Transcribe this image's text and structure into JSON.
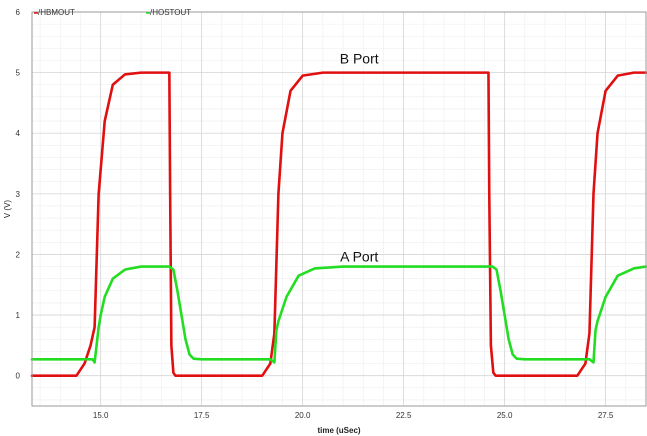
{
  "chart_data": {
    "type": "line",
    "xlabel": "time (uSec)",
    "ylabel": "V (V)",
    "xlim": [
      13.3,
      28.5
    ],
    "ylim": [
      -0.5,
      6.0
    ],
    "xticks": [
      15.0,
      17.5,
      20.0,
      22.5,
      25.0,
      27.5
    ],
    "xtick_labels": [
      "15.0",
      "17.5",
      "20.0",
      "22.5",
      "25.0",
      "27.5"
    ],
    "yticks": [
      0,
      1,
      2,
      3,
      4,
      5,
      6
    ],
    "ytick_labels": [
      "0",
      "1",
      "2",
      "3",
      "4",
      "5",
      "6"
    ],
    "grid": true,
    "legend_placement": "top-left",
    "series": [
      {
        "name": "/HBMOUT",
        "color": "#e01010",
        "x": [
          13.3,
          14.4,
          14.6,
          14.75,
          14.85,
          14.95,
          15.1,
          15.3,
          15.6,
          16.0,
          16.7,
          16.72,
          16.75,
          16.8,
          16.85,
          19.0,
          19.2,
          19.3,
          19.4,
          19.5,
          19.7,
          20.0,
          20.5,
          24.6,
          24.62,
          24.66,
          24.72,
          24.78,
          24.8,
          26.8,
          27.0,
          27.1,
          27.2,
          27.3,
          27.5,
          27.8,
          28.2,
          28.5
        ],
        "y": [
          0.0,
          0.0,
          0.2,
          0.5,
          0.8,
          3.0,
          4.2,
          4.8,
          4.97,
          5.0,
          5.0,
          3.0,
          0.5,
          0.05,
          0.0,
          0.0,
          0.2,
          0.7,
          3.0,
          4.0,
          4.7,
          4.95,
          5.0,
          5.0,
          3.0,
          0.5,
          0.05,
          0.0,
          0.0,
          0.0,
          0.2,
          0.7,
          3.0,
          4.0,
          4.7,
          4.95,
          5.0,
          5.0
        ]
      },
      {
        "name": "/HOSTOUT",
        "color": "#22dd22",
        "x": [
          13.3,
          14.8,
          14.85,
          14.95,
          15.0,
          15.1,
          15.3,
          15.6,
          16.0,
          16.7,
          16.8,
          16.9,
          17.0,
          17.1,
          17.2,
          17.3,
          17.5,
          19.2,
          19.3,
          19.35,
          19.4,
          19.6,
          19.9,
          20.3,
          21.0,
          24.7,
          24.8,
          24.9,
          25.0,
          25.1,
          25.2,
          25.3,
          25.5,
          27.1,
          27.2,
          27.25,
          27.3,
          27.5,
          27.8,
          28.2,
          28.5
        ],
        "y": [
          0.27,
          0.27,
          0.22,
          0.8,
          1.0,
          1.3,
          1.6,
          1.75,
          1.8,
          1.8,
          1.75,
          1.4,
          1.0,
          0.6,
          0.35,
          0.28,
          0.27,
          0.27,
          0.22,
          0.75,
          0.9,
          1.3,
          1.65,
          1.77,
          1.8,
          1.8,
          1.75,
          1.4,
          1.0,
          0.6,
          0.35,
          0.28,
          0.27,
          0.27,
          0.22,
          0.75,
          0.9,
          1.3,
          1.65,
          1.77,
          1.8
        ]
      }
    ],
    "annotations": [
      {
        "text": "B Port",
        "x": 21.4,
        "y": 5.15
      },
      {
        "text": "A Port",
        "x": 21.4,
        "y": 1.88
      }
    ]
  }
}
